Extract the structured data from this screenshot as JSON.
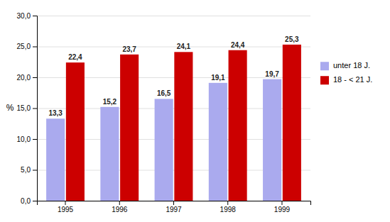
{
  "chart_data": {
    "type": "bar",
    "categories": [
      "1995",
      "1996",
      "1997",
      "1998",
      "1999"
    ],
    "series": [
      {
        "name": "unter 18 J.",
        "color": "#aaaaee",
        "values": [
          13.3,
          15.2,
          16.5,
          19.1,
          19.7
        ],
        "value_labels": [
          "13,3",
          "15,2",
          "16,5",
          "19,1",
          "19,7"
        ]
      },
      {
        "name": "18 - < 21 J.",
        "color": "#cc0000",
        "values": [
          22.4,
          23.7,
          24.1,
          24.4,
          25.3
        ],
        "value_labels": [
          "22,4",
          "23,7",
          "24,1",
          "24,4",
          "25,3"
        ]
      }
    ],
    "ylabel": "%",
    "ylim": [
      0,
      30
    ],
    "yticks": [
      {
        "value": 0.0,
        "label": "0,0"
      },
      {
        "value": 5.0,
        "label": "5,0"
      },
      {
        "value": 10.0,
        "label": "10,0"
      },
      {
        "value": 15.0,
        "label": "15,0"
      },
      {
        "value": 20.0,
        "label": "20,0"
      },
      {
        "value": 25.0,
        "label": "25,0"
      },
      {
        "value": 30.0,
        "label": "30,0"
      }
    ],
    "grid": true,
    "data_labels": true,
    "legend": "right"
  }
}
